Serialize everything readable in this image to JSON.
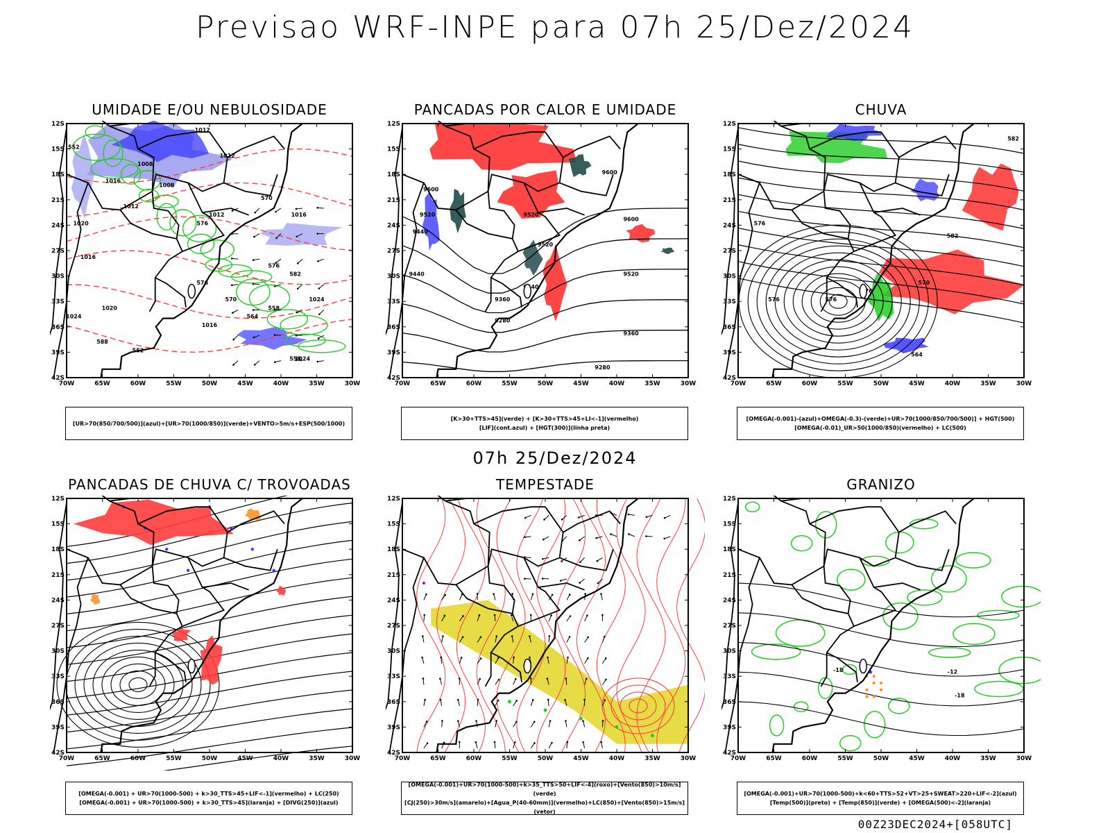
{
  "title": "Previsao WRF-INPE  para 07h 25/Dez/2024",
  "row_title": "07h 25/Dez/2024",
  "footer": "00Z23DEC2024+[058UTC]",
  "axes": {
    "lat_labels": [
      "12S",
      "15S",
      "18S",
      "21S",
      "24S",
      "27S",
      "30S",
      "33S",
      "36S",
      "39S",
      "42S"
    ],
    "lon_labels": [
      "70W",
      "65W",
      "60W",
      "55W",
      "50W",
      "45W",
      "40W",
      "35W",
      "30W"
    ]
  },
  "colors": {
    "blue": "#3a3aff",
    "lightblue": "#9a9af0",
    "green": "#22cc22",
    "red": "#ff3c3c",
    "darkteal": "#214a4a",
    "yellow": "#e6d832",
    "orange": "#ff8c1a",
    "purple": "#b000c8"
  },
  "panels": [
    {
      "title": "UMIDADE E/OU NEBULOSIDADE",
      "legend_lines": [
        "[UR>70(850/700/500)](azul)+[UR>70(1000/850)](verde)+VENTO>5m/s+ESP(500/1000)"
      ],
      "contour_labels": [
        "1012",
        "1012",
        "1008",
        "1016",
        "1008",
        "1012",
        "1012",
        "1016",
        "1020",
        "1016",
        "1020",
        "1024",
        "1024",
        "1016",
        "1024",
        "570",
        "576",
        "576",
        "570",
        "576",
        "582",
        "564",
        "558",
        "558",
        "552",
        "588",
        "552"
      ]
    },
    {
      "title": "PANCADAS POR CALOR E UMIDADE",
      "legend_lines": [
        "[K>30+TTS>45](verde) + [K>30+TTS>45+LI<-1](vermelho)",
        "[LIF](cont.azul) + [HGT(300)](linha preta)"
      ],
      "contour_labels": [
        "9600",
        "9600",
        "9520",
        "9440",
        "9520",
        "9440",
        "9360",
        "9280",
        "9520",
        "9360",
        "9280",
        "9600",
        "9440",
        "9520"
      ]
    },
    {
      "title": "CHUVA",
      "legend_lines": [
        "[OMEGA(-0.001)-(azul)+OMEGA(-0.3)-(verde)+UR>70(1000/850/700/500)] + HGT(500)",
        "[OMEGA(-0.01)_UR>50(1000/850)(vermelho) + LC(500)"
      ],
      "contour_labels": [
        "582",
        "582",
        "576",
        "576",
        "576",
        "570",
        "564",
        "576"
      ]
    },
    {
      "title": "PANCADAS DE CHUVA C/ TROVOADAS",
      "legend_lines": [
        "[OMEGA(-0.001) + UR>70(1000-500) + k>30_TTS>45+LIF<-1](vermelho) + LC(250)",
        "[OMEGA(-0.001) + UR>70(1000-500) + k>30_TTS>45](laranja) + [DIVG(250)](azul)"
      ],
      "contour_labels": []
    },
    {
      "title": "TEMPESTADE",
      "legend_lines": [
        "[OMEGA(-0.001)+UR>70(1000-500)+k>35_TTS>50+LIF<-4](roxo)+[Vento(850)>10m/s](verde)",
        "[CJ(250)>30m/s](amarelo)+[Agua_P(40-60mm)](vermelho)+LC(850)+[Vento(850)>15m/s](vetor)"
      ],
      "contour_labels": []
    },
    {
      "title": "GRANIZO",
      "legend_lines": [
        "[OMEGA(-0.001)+UR>70(1000-500)+k<60+TTS>52+VT>25+SWEAT>220+LIF<-2](azul)",
        "[Temp(500)](preto) + [Temp(850)](verde) + [OMEGA(500)<-2](laranja)"
      ],
      "contour_labels": [
        "-18",
        "-12",
        "-18"
      ]
    }
  ]
}
